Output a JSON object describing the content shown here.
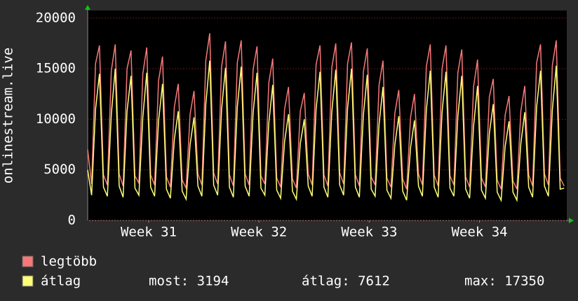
{
  "chart_data": {
    "type": "line",
    "y_label": "onlinestream.live",
    "x": [
      0,
      6,
      12,
      18,
      24,
      30,
      36,
      42,
      48,
      54,
      60,
      66,
      72,
      78,
      84,
      90,
      96,
      102,
      108,
      114,
      120,
      126,
      132,
      138,
      144,
      150,
      156,
      162,
      168,
      174,
      180,
      186,
      192,
      198,
      204,
      210,
      216,
      222,
      228,
      234,
      240,
      246,
      252,
      258,
      264,
      270,
      276,
      282,
      288,
      294,
      300,
      306,
      312,
      318,
      324,
      330,
      336,
      342,
      348,
      354,
      360,
      366,
      372,
      378,
      384,
      390,
      396,
      402,
      408,
      414,
      420,
      426,
      432,
      438,
      444,
      450,
      456,
      462,
      468,
      474,
      480,
      486,
      492,
      498,
      504,
      510,
      516,
      522,
      528,
      534,
      540,
      546,
      552,
      558,
      564,
      570,
      576,
      582,
      588,
      594,
      600,
      606,
      612,
      618,
      624,
      630,
      636,
      642,
      648,
      654,
      660,
      666,
      672,
      678,
      684,
      690,
      696,
      702,
      708,
      714,
      720,
      726
    ],
    "series": [
      {
        "name": "legtöbb",
        "color": "#f87878",
        "values": [
          7000,
          3600,
          15500,
          17300,
          4500,
          3500,
          14800,
          17400,
          4600,
          3400,
          15000,
          16800,
          4400,
          3700,
          14500,
          17100,
          4500,
          3500,
          13800,
          16200,
          4300,
          3300,
          11200,
          13500,
          4000,
          3200,
          10500,
          12800,
          4600,
          3500,
          15800,
          18500,
          4700,
          3600,
          15200,
          17700,
          4500,
          3400,
          15600,
          17800,
          4600,
          3500,
          14900,
          17200,
          4400,
          3600,
          13600,
          16000,
          4200,
          3300,
          11000,
          13200,
          4100,
          3200,
          10800,
          12600,
          4600,
          3500,
          15400,
          17300,
          4500,
          3400,
          15100,
          17500,
          4700,
          3600,
          15500,
          17600,
          4500,
          3400,
          14700,
          17000,
          4300,
          3500,
          13400,
          15800,
          4200,
          3300,
          10600,
          12900,
          4100,
          3100,
          10200,
          12500,
          4600,
          3500,
          15200,
          17400,
          4500,
          3400,
          15000,
          17300,
          4400,
          3500,
          14600,
          16900,
          4300,
          3300,
          13200,
          15900,
          4200,
          3300,
          12200,
          14000,
          4000,
          3100,
          10400,
          12300,
          3900,
          3100,
          10800,
          13300,
          4500,
          3400,
          15600,
          17400,
          4600,
          3500,
          15300,
          17800,
          4200,
          3400
        ]
      },
      {
        "name": "átlag",
        "color": "#ffff78",
        "values": [
          5000,
          2500,
          11000,
          14500,
          3300,
          2400,
          10500,
          15000,
          3400,
          2300,
          10800,
          14300,
          3200,
          2500,
          10200,
          14600,
          3300,
          2400,
          9800,
          13500,
          3100,
          2200,
          8000,
          10800,
          2900,
          2100,
          7500,
          10200,
          3400,
          2400,
          11500,
          15800,
          3500,
          2500,
          11000,
          15100,
          3300,
          2300,
          11200,
          15200,
          3400,
          2400,
          10600,
          14600,
          3200,
          2500,
          9600,
          13400,
          3000,
          2200,
          7800,
          10500,
          2900,
          2100,
          7600,
          10000,
          3400,
          2400,
          11000,
          14700,
          3300,
          2300,
          10700,
          14900,
          3500,
          2500,
          11100,
          15000,
          3300,
          2300,
          10400,
          14400,
          3100,
          2400,
          9500,
          13200,
          3000,
          2200,
          7500,
          10300,
          2900,
          2000,
          7200,
          9900,
          3400,
          2400,
          10900,
          14800,
          3300,
          2300,
          10700,
          14700,
          3200,
          2400,
          10300,
          14300,
          3100,
          2200,
          9300,
          13300,
          3000,
          2200,
          8600,
          11500,
          2800,
          2000,
          7300,
          9800,
          2800,
          2000,
          7600,
          10700,
          3300,
          2300,
          11200,
          14800,
          3400,
          2400,
          10900,
          15300,
          3100,
          3194
        ]
      }
    ],
    "xlim": [
      0,
      730
    ],
    "ylim": [
      0,
      20750
    ],
    "xticks": [
      {
        "value": 93,
        "label": "Week 31"
      },
      {
        "value": 261,
        "label": "Week 32"
      },
      {
        "value": 429,
        "label": "Week 33"
      },
      {
        "value": 597,
        "label": "Week 34"
      }
    ],
    "yticks": [
      0,
      5000,
      10000,
      15000,
      20000
    ],
    "grid": true,
    "legend_stats": [
      "most: 3194",
      "átlag: 7612",
      "max: 17350"
    ]
  }
}
